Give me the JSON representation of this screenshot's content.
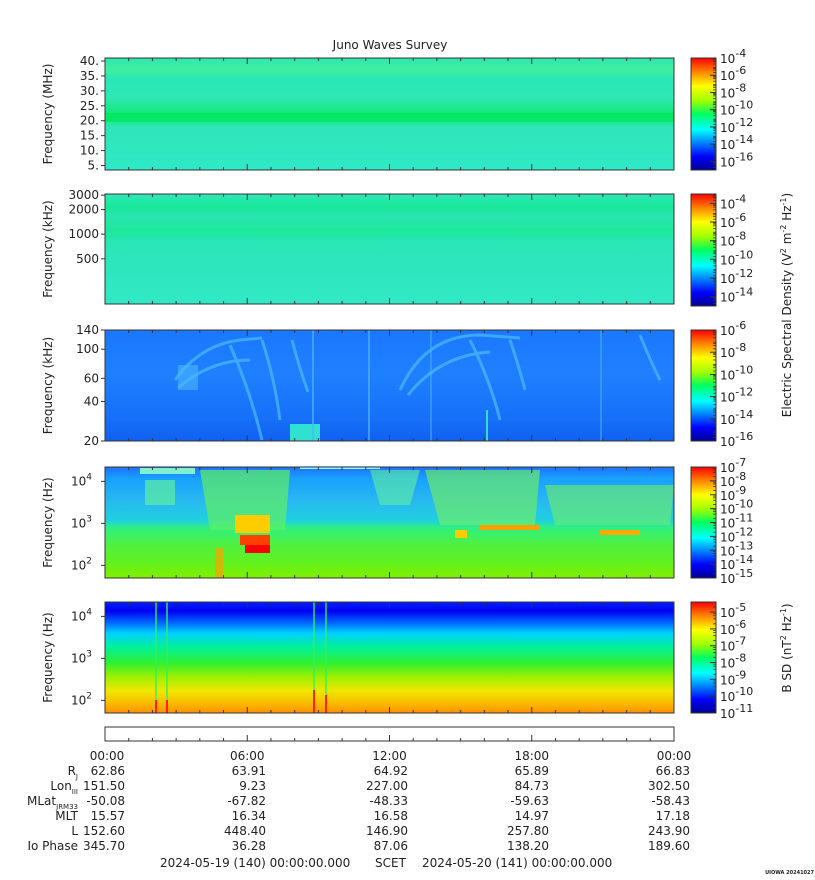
{
  "chart_data": {
    "type": "heatmap",
    "title": "Juno Waves Survey",
    "panels": [
      {
        "id": "hfr-high",
        "ylabel": "Frequency (MHz)",
        "yticks": [
          "40.",
          "35.",
          "30.",
          "25.",
          "20.",
          "15.",
          "10.",
          "5."
        ],
        "ytick_values": [
          40,
          35,
          30,
          25,
          20,
          15,
          10,
          5
        ],
        "ylim": [
          3.5,
          41
        ],
        "yscale": "linear",
        "colorbar_ticks": [
          -4,
          -6,
          -8,
          -10,
          -12,
          -14,
          -16
        ],
        "colorbar_range": [
          -17,
          -4
        ]
      },
      {
        "id": "hfr-low",
        "ylabel": "Frequency (kHz)",
        "yticks": [
          "3000",
          "2000",
          "1000",
          "500"
        ],
        "ytick_values": [
          3000,
          2000,
          1000,
          500
        ],
        "ylim": [
          140,
          3100
        ],
        "yscale": "log",
        "colorbar_ticks": [
          -4,
          -6,
          -8,
          -10,
          -12,
          -14
        ],
        "colorbar_range": [
          -15,
          -3
        ]
      },
      {
        "id": "lfr-high",
        "ylabel": "Frequency (kHz)",
        "yticks": [
          "140",
          "100",
          "60",
          "40",
          "20"
        ],
        "ytick_values": [
          140,
          100,
          60,
          40,
          20
        ],
        "ylim": [
          20,
          140
        ],
        "yscale": "log",
        "colorbar_ticks": [
          -6,
          -8,
          -10,
          -12,
          -14,
          -16
        ],
        "colorbar_range": [
          -16,
          -6
        ]
      },
      {
        "id": "lfr-low",
        "ylabel": "Frequency (Hz)",
        "yticks": [
          "10",
          "10",
          "10"
        ],
        "ytick_exponents": [
          "4",
          "3",
          "2"
        ],
        "ytick_values": [
          10000,
          1000,
          100
        ],
        "ylim": [
          50,
          22000
        ],
        "yscale": "log",
        "colorbar_ticks": [
          -7,
          -8,
          -9,
          -10,
          -11,
          -12,
          -13,
          -14,
          -15
        ],
        "colorbar_range": [
          -15,
          -7
        ]
      },
      {
        "id": "magnetic",
        "ylabel": "Frequency (Hz)",
        "yticks": [
          "10",
          "10",
          "10"
        ],
        "ytick_exponents": [
          "4",
          "3",
          "2"
        ],
        "ytick_values": [
          10000,
          1000,
          100
        ],
        "ylim": [
          50,
          22000
        ],
        "yscale": "log",
        "colorbar_ticks": [
          -5,
          -6,
          -7,
          -8,
          -9,
          -10,
          -11
        ],
        "colorbar_range": [
          -11,
          -4.4
        ]
      }
    ],
    "colorbar_label_electric": "Electric Spectral Density (V",
    "colorbar_label_electric_parts": [
      "Electric Spectral Density (V",
      "2",
      " m",
      "-2",
      " Hz",
      "-1",
      ")"
    ],
    "colorbar_label_magnetic_parts": [
      "B SD (nT",
      "2",
      " Hz",
      "-1",
      ")"
    ],
    "colorbar_tick_base": "10",
    "colorbar_tick_sign": "-",
    "x_ticks": [
      "00:00",
      "06:00",
      "12:00",
      "18:00",
      "00:00"
    ],
    "x_tick_hours": [
      0,
      6,
      12,
      18,
      24
    ],
    "xlim_hours": [
      0,
      24
    ],
    "ephemeris": [
      {
        "label": "R",
        "sub": "J",
        "values": [
          "62.86",
          "63.91",
          "64.92",
          "65.89",
          "66.83"
        ]
      },
      {
        "label": "Lon",
        "sub": "III",
        "values": [
          "151.50",
          "9.23",
          "227.00",
          "84.73",
          "302.50"
        ]
      },
      {
        "label": "MLat",
        "sub": "JRM33",
        "values": [
          "-50.08",
          "-67.82",
          "-48.33",
          "-59.63",
          "-58.43"
        ]
      },
      {
        "label": "MLT",
        "sub": "",
        "values": [
          "15.57",
          "16.34",
          "16.58",
          "14.97",
          "17.18"
        ]
      },
      {
        "label": "L",
        "sub": "",
        "values": [
          "152.60",
          "448.40",
          "146.90",
          "257.80",
          "243.90"
        ]
      },
      {
        "label": "Io Phase",
        "sub": "",
        "values": [
          "345.70",
          "36.28",
          "87.06",
          "138.20",
          "189.60"
        ]
      }
    ],
    "time_start": "2024-05-19 (140) 00:00:00.000",
    "time_mid_label": "SCET",
    "time_end": "2024-05-20 (141) 00:00:00.000",
    "credit": "UIOWA 20241027"
  }
}
